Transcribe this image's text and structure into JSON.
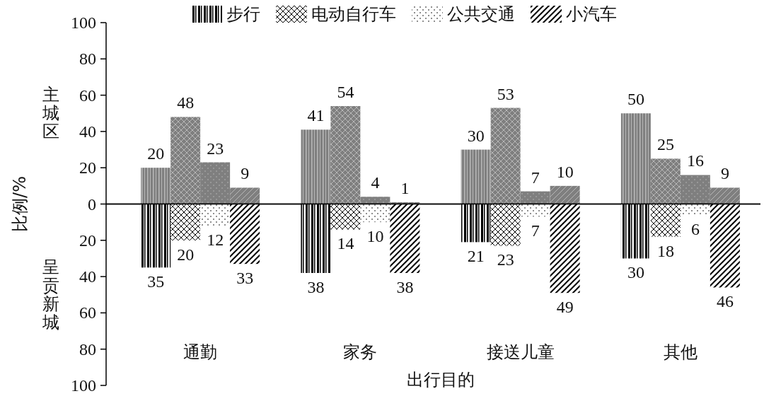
{
  "chart_data": [
    {
      "type": "bar",
      "categories": [
        null,
        null,
        null,
        null
      ],
      "tick_labels": "y",
      "ylabel": "比例/%",
      "annotations": [
        "主城区"
      ],
      "ylim": [
        0,
        100
      ],
      "yticks": [
        0,
        20,
        40,
        60,
        80,
        100
      ],
      "data_labels": true,
      "series": [
        {
          "color": "#7f7f7f",
          "values": [
            20,
            41,
            30,
            50
          ]
        },
        {
          "color": "#7f7f7f",
          "values": [
            48,
            54,
            53,
            25
          ]
        },
        {
          "color": "#7f7f7f",
          "values": [
            23,
            4,
            7,
            16
          ]
        },
        {
          "color": "#7f7f7f",
          "values": [
            9,
            1,
            10,
            9
          ]
        }
      ]
    },
    {
      "type": "bar",
      "categories": [
        "通勤",
        "家务",
        "接送儿童",
        "其他"
      ],
      "xlabel": "出行目的",
      "annotations": [
        "呈贡新城"
      ],
      "ylim": [
        100,
        0
      ],
      "yticks": [
        20,
        40,
        60,
        80,
        100
      ],
      "data_labels": true,
      "legend": "top",
      "series": [
        {
          "name": "步行",
          "color": "#ffffff",
          "values": [
            35,
            38,
            21,
            30
          ]
        },
        {
          "name": "电动自行车",
          "color": "#ffffff",
          "values": [
            20,
            14,
            23,
            18
          ]
        },
        {
          "name": "公共交通",
          "color": "#ffffff",
          "values": [
            12,
            10,
            7,
            6
          ]
        },
        {
          "name": "小汽车",
          "color": "#ffffff",
          "values": [
            33,
            38,
            49,
            46
          ]
        }
      ]
    }
  ]
}
